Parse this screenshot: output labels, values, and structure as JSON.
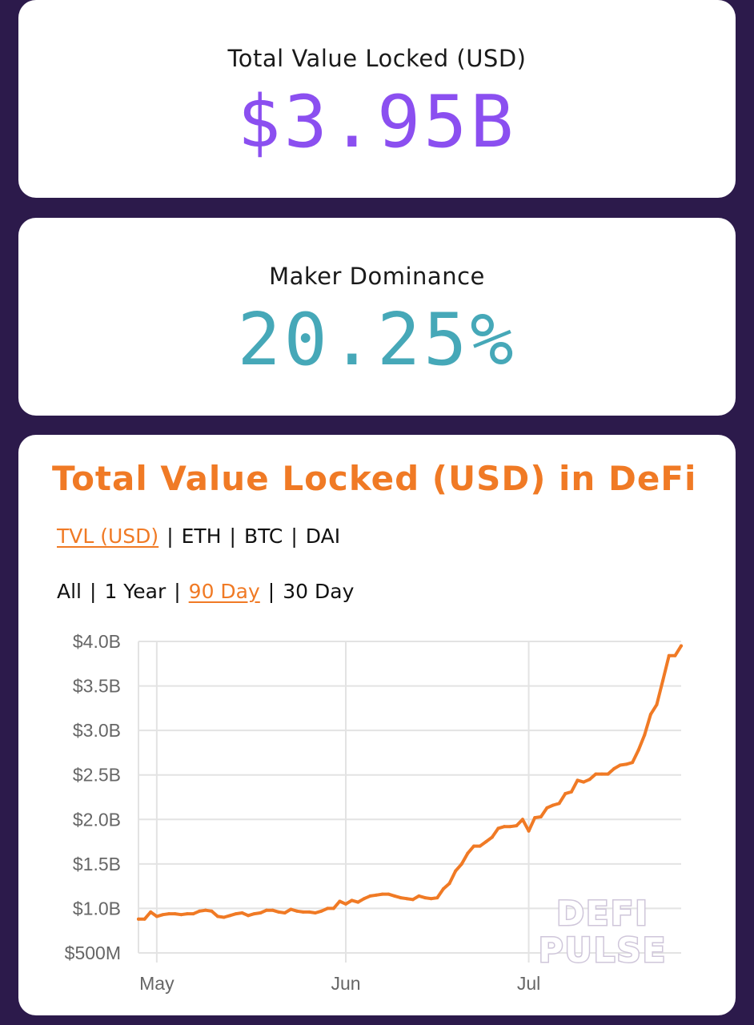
{
  "colors": {
    "background": "#2c1a4b",
    "tvl_value": "#8b4ff0",
    "dominance_value": "#46a8b8",
    "accent_orange": "#f07a25",
    "line": "#f07a25",
    "grid": "#e3e3e3"
  },
  "tvl_card": {
    "label": "Total Value Locked (USD)",
    "value": "$3.95B"
  },
  "dominance_card": {
    "label": "Maker Dominance",
    "value": "20.25%"
  },
  "chart_card": {
    "title": "Total Value Locked (USD) in DeFi",
    "unit_tabs": [
      {
        "label": "TVL (USD)",
        "active": true
      },
      {
        "label": "ETH",
        "active": false
      },
      {
        "label": "BTC",
        "active": false
      },
      {
        "label": "DAI",
        "active": false
      }
    ],
    "range_tabs": [
      {
        "label": "All",
        "active": false
      },
      {
        "label": "1 Year",
        "active": false
      },
      {
        "label": "90 Day",
        "active": true
      },
      {
        "label": "30 Day",
        "active": false
      }
    ],
    "watermark": [
      "DEFI",
      "PULSE"
    ]
  },
  "chart_data": {
    "type": "line",
    "title": "Total Value Locked (USD) in DeFi",
    "xlabel": "",
    "ylabel": "",
    "ylim": [
      500000000,
      4000000000
    ],
    "yticks": [
      500000000,
      1000000000,
      1500000000,
      2000000000,
      2500000000,
      3000000000,
      3500000000,
      4000000000
    ],
    "ytick_labels": [
      "$500M",
      "$1.0B",
      "$1.5B",
      "$2.0B",
      "$2.5B",
      "$3.0B",
      "$3.5B",
      "$4.0B"
    ],
    "xlim": [
      "2020-04-28",
      "2020-07-26"
    ],
    "xticks": [
      "2020-05-01",
      "2020-06-01",
      "2020-07-01"
    ],
    "xtick_labels": [
      "May",
      "Jun",
      "Jul"
    ],
    "grid": true,
    "series": [
      {
        "x": [
          "2020-04-28",
          "2020-04-29",
          "2020-04-30",
          "2020-05-01",
          "2020-05-02",
          "2020-05-03",
          "2020-05-04",
          "2020-05-05",
          "2020-05-06",
          "2020-05-07",
          "2020-05-08",
          "2020-05-09",
          "2020-05-10",
          "2020-05-11",
          "2020-05-12",
          "2020-05-13",
          "2020-05-14",
          "2020-05-15",
          "2020-05-16",
          "2020-05-17",
          "2020-05-18",
          "2020-05-19",
          "2020-05-20",
          "2020-05-21",
          "2020-05-22",
          "2020-05-23",
          "2020-05-24",
          "2020-05-25",
          "2020-05-26",
          "2020-05-27",
          "2020-05-28",
          "2020-05-29",
          "2020-05-30",
          "2020-05-31",
          "2020-06-01",
          "2020-06-02",
          "2020-06-03",
          "2020-06-04",
          "2020-06-05",
          "2020-06-06",
          "2020-06-07",
          "2020-06-08",
          "2020-06-09",
          "2020-06-10",
          "2020-06-11",
          "2020-06-12",
          "2020-06-13",
          "2020-06-14",
          "2020-06-15",
          "2020-06-16",
          "2020-06-17",
          "2020-06-18",
          "2020-06-19",
          "2020-06-20",
          "2020-06-21",
          "2020-06-22",
          "2020-06-23",
          "2020-06-24",
          "2020-06-25",
          "2020-06-26",
          "2020-06-27",
          "2020-06-28",
          "2020-06-29",
          "2020-06-30",
          "2020-07-01",
          "2020-07-02",
          "2020-07-03",
          "2020-07-04",
          "2020-07-05",
          "2020-07-06",
          "2020-07-07",
          "2020-07-08",
          "2020-07-09",
          "2020-07-10",
          "2020-07-11",
          "2020-07-12",
          "2020-07-13",
          "2020-07-14",
          "2020-07-15",
          "2020-07-16",
          "2020-07-17",
          "2020-07-18",
          "2020-07-19",
          "2020-07-20",
          "2020-07-21",
          "2020-07-22",
          "2020-07-23",
          "2020-07-24",
          "2020-07-25",
          "2020-07-26"
        ],
        "values": [
          880000000,
          880000000,
          960000000,
          910000000,
          930000000,
          940000000,
          940000000,
          930000000,
          940000000,
          940000000,
          970000000,
          980000000,
          970000000,
          910000000,
          900000000,
          920000000,
          940000000,
          950000000,
          920000000,
          940000000,
          950000000,
          980000000,
          980000000,
          960000000,
          950000000,
          990000000,
          970000000,
          960000000,
          960000000,
          950000000,
          970000000,
          1000000000,
          1000000000,
          1080000000,
          1050000000,
          1090000000,
          1070000000,
          1110000000,
          1140000000,
          1150000000,
          1160000000,
          1160000000,
          1140000000,
          1120000000,
          1110000000,
          1100000000,
          1140000000,
          1120000000,
          1110000000,
          1120000000,
          1220000000,
          1280000000,
          1420000000,
          1500000000,
          1620000000,
          1700000000,
          1700000000,
          1750000000,
          1800000000,
          1900000000,
          1920000000,
          1920000000,
          1930000000,
          2000000000,
          1870000000,
          2020000000,
          2030000000,
          2130000000,
          2160000000,
          2180000000,
          2290000000,
          2310000000,
          2440000000,
          2420000000,
          2450000000,
          2510000000,
          2510000000,
          2510000000,
          2570000000,
          2610000000,
          2620000000,
          2640000000,
          2780000000,
          2950000000,
          3180000000,
          3290000000,
          3560000000,
          3840000000,
          3840000000,
          3950000000
        ]
      }
    ],
    "watermark": "DEFI PULSE"
  }
}
